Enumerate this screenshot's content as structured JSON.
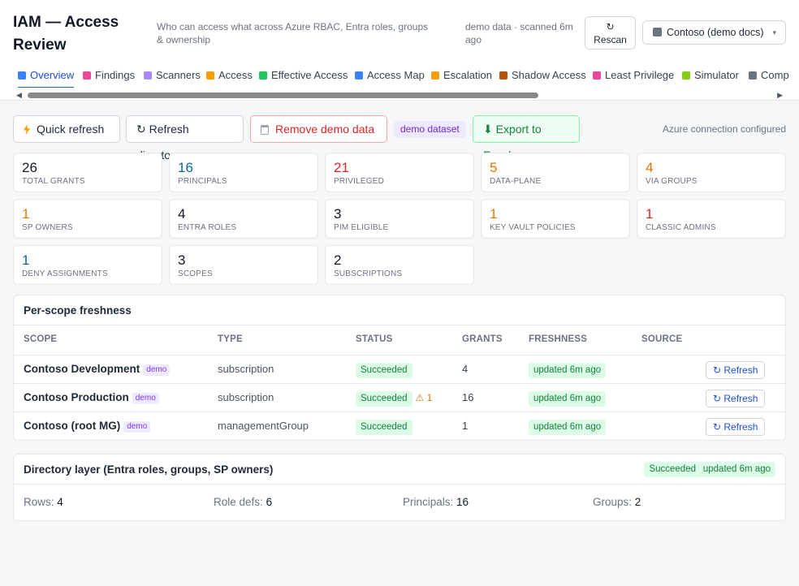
{
  "header": {
    "title": "IAM — Access Review",
    "subtitle": "Who can access what across Azure RBAC, Entra roles, groups & ownership",
    "scan_meta": "demo data · scanned 6m ago",
    "rescan_icon": "↻",
    "rescan_label": "Rescan",
    "tenant": "Contoso (demo docs)",
    "tenant_chevron": "▾"
  },
  "tabs": [
    {
      "label": "Overview",
      "icon": "chart-icon",
      "color": "#3b82f6"
    },
    {
      "label": "Findings",
      "icon": "flask-icon",
      "color": "#ec4899"
    },
    {
      "label": "Scanners",
      "icon": "microscope-icon",
      "color": "#a78bfa"
    },
    {
      "label": "Access",
      "icon": "key-icon",
      "color": "#f59e0b"
    },
    {
      "label": "Effective Access",
      "icon": "sparkle-icon",
      "color": "#22c55e"
    },
    {
      "label": "Access Map",
      "icon": "map-icon",
      "color": "#3b82f6"
    },
    {
      "label": "Escalation",
      "icon": "bolt-icon",
      "color": "#f59e0b"
    },
    {
      "label": "Shadow Access",
      "icon": "door-icon",
      "color": "#b45309"
    },
    {
      "label": "Least Privilege",
      "icon": "chart-down-icon",
      "color": "#ec4899"
    },
    {
      "label": "Simulator",
      "icon": "pencil-icon",
      "color": "#84cc16"
    },
    {
      "label": "Comp",
      "icon": "clock-icon",
      "color": "#6b7280"
    }
  ],
  "toolbar": {
    "quick_refresh": "Quick refresh",
    "refresh_directory_icon": "↻",
    "refresh_directory": "Refresh directory",
    "remove_demo": "Remove demo data",
    "dataset_pill": "demo dataset",
    "export_icon": "⬇",
    "export": "Export to Excel",
    "connection": "Azure connection configured"
  },
  "stats": [
    {
      "value": "26",
      "label": "TOTAL GRANTS",
      "tone": "dark"
    },
    {
      "value": "16",
      "label": "PRINCIPALS",
      "tone": "blue"
    },
    {
      "value": "21",
      "label": "PRIVILEGED",
      "tone": "red"
    },
    {
      "value": "5",
      "label": "DATA-PLANE",
      "tone": "orange"
    },
    {
      "value": "4",
      "label": "VIA GROUPS",
      "tone": "orange"
    },
    {
      "value": "1",
      "label": "SP OWNERS",
      "tone": "orange"
    },
    {
      "value": "4",
      "label": "ENTRA ROLES",
      "tone": "dark"
    },
    {
      "value": "3",
      "label": "PIM ELIGIBLE",
      "tone": "dark"
    },
    {
      "value": "1",
      "label": "KEY VAULT POLICIES",
      "tone": "orange"
    },
    {
      "value": "1",
      "label": "CLASSIC ADMINS",
      "tone": "red"
    },
    {
      "value": "1",
      "label": "DENY ASSIGNMENTS",
      "tone": "blue"
    },
    {
      "value": "3",
      "label": "SCOPES",
      "tone": "dark"
    },
    {
      "value": "2",
      "label": "SUBSCRIPTIONS",
      "tone": "dark"
    }
  ],
  "freshness": {
    "title": "Per-scope freshness",
    "columns": [
      "SCOPE",
      "TYPE",
      "STATUS",
      "GRANTS",
      "FRESHNESS",
      "SOURCE"
    ],
    "rows": [
      {
        "scope": "Contoso Development",
        "tag": "demo",
        "type": "subscription",
        "status": "Succeeded",
        "warning": "",
        "grants": "4",
        "freshness": "updated 6m ago",
        "source": "",
        "action": "↻ Refresh"
      },
      {
        "scope": "Contoso Production",
        "tag": "demo",
        "type": "subscription",
        "status": "Succeeded",
        "warning": "⚠ 1",
        "grants": "16",
        "freshness": "updated 6m ago",
        "source": "",
        "action": "↻ Refresh"
      },
      {
        "scope": "Contoso (root MG)",
        "tag": "demo",
        "type": "managementGroup",
        "status": "Succeeded",
        "warning": "",
        "grants": "1",
        "freshness": "updated 6m ago",
        "source": "",
        "action": "↻ Refresh"
      }
    ]
  },
  "directory": {
    "title": "Directory layer (Entra roles, groups, SP owners)",
    "status": "Succeeded",
    "freshness": "updated 6m ago",
    "rows_label": "Rows:",
    "rows_value": "4",
    "roledefs_label": "Role defs:",
    "roledefs_value": "6",
    "principals_label": "Principals:",
    "principals_value": "16",
    "groups_label": "Groups:",
    "groups_value": "2"
  }
}
